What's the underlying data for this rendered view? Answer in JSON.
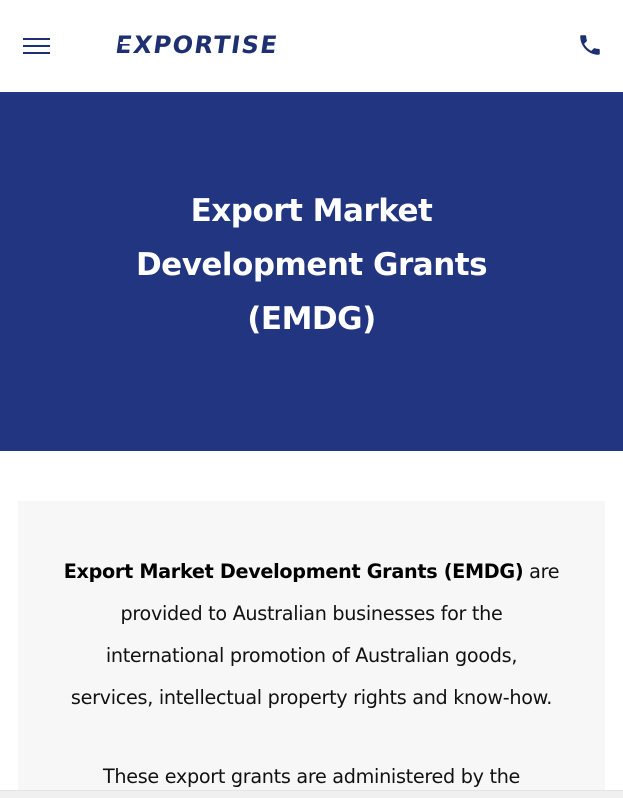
{
  "header": {
    "logo_text": "EXPORTISE",
    "menu_icon": "hamburger-menu-icon",
    "phone_icon": "phone-icon",
    "brand_color": "#1e2f72"
  },
  "hero": {
    "title_lines": [
      "Export Market",
      "Development Grants",
      "(EMDG)"
    ],
    "background_color": "#213580"
  },
  "content": {
    "paragraph1": {
      "bold_text": "Export Market Development Grants (EMDG)",
      "line1_rest": " are",
      "line2": "provided to Australian businesses for the",
      "line3": "international promotion of Australian goods,",
      "line4": "services, intellectual property rights and know-how."
    },
    "paragraph2": {
      "line1": "These export grants are administered by the"
    },
    "card_background": "#f7f7f7"
  }
}
